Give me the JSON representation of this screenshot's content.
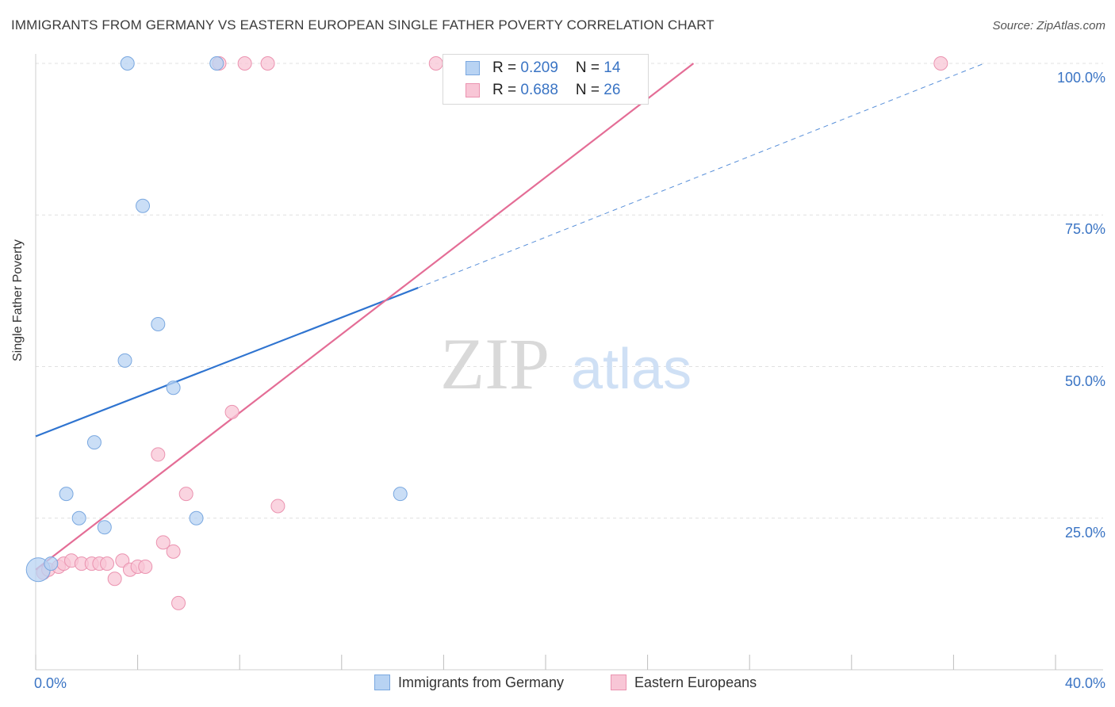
{
  "header": {
    "title": "IMMIGRANTS FROM GERMANY VS EASTERN EUROPEAN SINGLE FATHER POVERTY CORRELATION CHART",
    "source": "Source: ZipAtlas.com"
  },
  "colors": {
    "blue_fill": "#b8d3f3",
    "blue_stroke": "#7aa8e0",
    "blue_line": "#2f74d0",
    "pink_fill": "#f8c6d6",
    "pink_stroke": "#eb93b0",
    "pink_line": "#e46d96",
    "tick_text": "#3a74c4",
    "grid": "#e0e0e0"
  },
  "legend_top": {
    "rows": [
      {
        "r_label": "R = ",
        "r_value": "0.209",
        "n_label": "N = ",
        "n_value": "14"
      },
      {
        "r_label": "R = ",
        "r_value": "0.688",
        "n_label": "N = ",
        "n_value": "26"
      }
    ]
  },
  "legend_bottom": {
    "series_a": "Immigrants from Germany",
    "series_b": "Eastern Europeans"
  },
  "watermark": {
    "zip": "ZIP",
    "atlas": "atlas"
  },
  "chart_data": {
    "type": "scatter",
    "title": "IMMIGRANTS FROM GERMANY VS EASTERN EUROPEAN SINGLE FATHER POVERTY CORRELATION CHART",
    "xlabel": "",
    "ylabel": "Single Father Poverty",
    "xlim": [
      0,
      40
    ],
    "ylim": [
      0,
      100
    ],
    "x_tick_labels": [
      {
        "value": 0,
        "label": "0.0%"
      },
      {
        "value": 40,
        "label": "40.0%"
      }
    ],
    "y_tick_labels": [
      {
        "value": 25,
        "label": "25.0%"
      },
      {
        "value": 50,
        "label": "50.0%"
      },
      {
        "value": 75,
        "label": "75.0%"
      },
      {
        "value": 100,
        "label": "100.0%"
      }
    ],
    "series": [
      {
        "name": "Immigrants from Germany",
        "R": 0.209,
        "N": 14,
        "points": [
          {
            "x": 0.1,
            "y": 16.5,
            "big": true
          },
          {
            "x": 0.6,
            "y": 17.5
          },
          {
            "x": 1.2,
            "y": 29.0
          },
          {
            "x": 1.7,
            "y": 25.0
          },
          {
            "x": 2.3,
            "y": 37.5
          },
          {
            "x": 2.7,
            "y": 23.5
          },
          {
            "x": 3.5,
            "y": 51.0
          },
          {
            "x": 3.6,
            "y": 100.0
          },
          {
            "x": 4.2,
            "y": 76.5
          },
          {
            "x": 4.8,
            "y": 57.0
          },
          {
            "x": 5.4,
            "y": 46.5
          },
          {
            "x": 6.3,
            "y": 25.0
          },
          {
            "x": 7.1,
            "y": 100.0
          },
          {
            "x": 14.3,
            "y": 29.0
          }
        ],
        "trend": {
          "x1": 0,
          "y1": 38.5,
          "x2": 15.0,
          "y2": 63.0,
          "x_dash_end": 37.2,
          "y_dash_end": 100.0
        }
      },
      {
        "name": "Eastern Europeans",
        "R": 0.688,
        "N": 26,
        "points": [
          {
            "x": 0.3,
            "y": 16.0
          },
          {
            "x": 0.5,
            "y": 16.5
          },
          {
            "x": 0.9,
            "y": 17.0
          },
          {
            "x": 1.1,
            "y": 17.5
          },
          {
            "x": 1.4,
            "y": 18.0
          },
          {
            "x": 1.8,
            "y": 17.5
          },
          {
            "x": 2.2,
            "y": 17.5
          },
          {
            "x": 2.5,
            "y": 17.5
          },
          {
            "x": 2.8,
            "y": 17.5
          },
          {
            "x": 3.1,
            "y": 15.0
          },
          {
            "x": 3.4,
            "y": 18.0
          },
          {
            "x": 3.7,
            "y": 16.5
          },
          {
            "x": 4.0,
            "y": 17.0
          },
          {
            "x": 4.3,
            "y": 17.0
          },
          {
            "x": 4.8,
            "y": 35.5
          },
          {
            "x": 5.0,
            "y": 21.0
          },
          {
            "x": 5.4,
            "y": 19.5
          },
          {
            "x": 5.6,
            "y": 11.0
          },
          {
            "x": 5.9,
            "y": 29.0
          },
          {
            "x": 7.2,
            "y": 100.0
          },
          {
            "x": 7.7,
            "y": 42.5
          },
          {
            "x": 8.2,
            "y": 100.0
          },
          {
            "x": 9.1,
            "y": 100.0
          },
          {
            "x": 9.5,
            "y": 27.0
          },
          {
            "x": 15.7,
            "y": 100.0
          },
          {
            "x": 35.5,
            "y": 100.0
          }
        ],
        "trend": {
          "x1": 0,
          "y1": 16.5,
          "x2": 25.8,
          "y2": 100.0
        }
      }
    ]
  }
}
